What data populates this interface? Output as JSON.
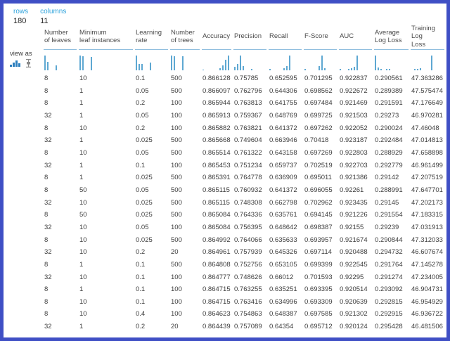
{
  "meta": {
    "rows_label": "rows",
    "rows_value": "180",
    "columns_label": "columns",
    "columns_value": "11",
    "view_as_label": "view as"
  },
  "view_icons": [
    {
      "name": "histogram-view-icon",
      "selected": true
    },
    {
      "name": "boxplot-view-icon",
      "selected": false
    }
  ],
  "colors": {
    "frame": "#3F4FC5",
    "meta_label_blue": "#2FA3DC",
    "histogram_bar_blue": "#5EA8D2",
    "header_underline_blue": "#8FBEDE",
    "selected_icon_blue": "#2C7FBE",
    "text_dark": "#3C3C3C"
  },
  "chart_data": {
    "type": "table",
    "columns": [
      {
        "label": "Number\nof leaves",
        "hist": [
          1,
          0.55,
          0,
          0,
          0.35,
          0,
          0,
          0,
          0,
          0
        ]
      },
      {
        "label": "Minimum\nleaf instances",
        "hist": [
          1,
          0.95,
          0,
          0,
          0.9,
          0,
          0,
          0,
          0,
          0
        ]
      },
      {
        "label": "Learning\nrate",
        "hist": [
          1,
          0.45,
          0.45,
          0,
          0,
          0.5,
          0,
          0,
          0,
          0
        ]
      },
      {
        "label": "Number\nof trees",
        "hist": [
          1,
          0.95,
          0,
          0,
          0.95,
          0,
          0,
          0,
          0,
          0
        ]
      },
      {
        "label": "Accuracy",
        "hist": [
          0.06,
          0,
          0,
          0,
          0,
          0,
          0.15,
          0.35,
          0.7,
          1
        ]
      },
      {
        "label": "Precision",
        "hist": [
          0.25,
          0.45,
          1,
          0.3,
          0,
          0,
          0.08,
          0,
          0,
          0
        ]
      },
      {
        "label": "Recall",
        "hist": [
          0.08,
          0,
          0,
          0,
          0,
          0.15,
          0.3,
          1,
          0,
          0
        ]
      },
      {
        "label": "F-Score",
        "hist": [
          0.08,
          0,
          0,
          0,
          0,
          0.3,
          1,
          0.12,
          0,
          0
        ]
      },
      {
        "label": "AUC",
        "hist": [
          0.08,
          0,
          0,
          0.1,
          0.15,
          0.25,
          1,
          0,
          0,
          0
        ]
      },
      {
        "label": "Average\nLog Loss",
        "hist": [
          1,
          0.2,
          0.1,
          0,
          0.1,
          0.08,
          0,
          0,
          0,
          0
        ]
      },
      {
        "label": "Training Log\nLoss",
        "hist": [
          0,
          0.08,
          0.1,
          0.12,
          0,
          0,
          0,
          1,
          0,
          0
        ]
      }
    ],
    "rows": [
      [
        "8",
        "10",
        "0.1",
        "500",
        "0.866128",
        "0.75785",
        "0.652595",
        "0.701295",
        "0.922837",
        "0.290561",
        "47.363286"
      ],
      [
        "8",
        "1",
        "0.05",
        "500",
        "0.866097",
        "0.762796",
        "0.644306",
        "0.698562",
        "0.922672",
        "0.289389",
        "47.575474"
      ],
      [
        "8",
        "1",
        "0.2",
        "100",
        "0.865944",
        "0.763813",
        "0.641755",
        "0.697484",
        "0.921469",
        "0.291591",
        "47.176649"
      ],
      [
        "32",
        "1",
        "0.05",
        "100",
        "0.865913",
        "0.759367",
        "0.648769",
        "0.699725",
        "0.921503",
        "0.29273",
        "46.970281"
      ],
      [
        "8",
        "10",
        "0.2",
        "100",
        "0.865882",
        "0.763821",
        "0.641372",
        "0.697262",
        "0.922052",
        "0.290024",
        "47.46048"
      ],
      [
        "32",
        "1",
        "0.025",
        "500",
        "0.865668",
        "0.749604",
        "0.663946",
        "0.70418",
        "0.923187",
        "0.292484",
        "47.014813"
      ],
      [
        "8",
        "10",
        "0.05",
        "500",
        "0.865514",
        "0.761322",
        "0.643158",
        "0.697269",
        "0.922803",
        "0.288929",
        "47.658898"
      ],
      [
        "32",
        "1",
        "0.1",
        "100",
        "0.865453",
        "0.751234",
        "0.659737",
        "0.702519",
        "0.922703",
        "0.292779",
        "46.961499"
      ],
      [
        "8",
        "1",
        "0.025",
        "500",
        "0.865391",
        "0.764778",
        "0.636909",
        "0.695011",
        "0.921386",
        "0.29142",
        "47.207519"
      ],
      [
        "8",
        "50",
        "0.05",
        "500",
        "0.865115",
        "0.760932",
        "0.641372",
        "0.696055",
        "0.92261",
        "0.288991",
        "47.647701"
      ],
      [
        "32",
        "10",
        "0.025",
        "500",
        "0.865115",
        "0.748308",
        "0.662798",
        "0.702962",
        "0.923435",
        "0.29145",
        "47.202173"
      ],
      [
        "8",
        "50",
        "0.025",
        "500",
        "0.865084",
        "0.764336",
        "0.635761",
        "0.694145",
        "0.921226",
        "0.291554",
        "47.183315"
      ],
      [
        "32",
        "10",
        "0.05",
        "100",
        "0.865084",
        "0.756395",
        "0.648642",
        "0.698387",
        "0.92155",
        "0.29239",
        "47.031913"
      ],
      [
        "8",
        "10",
        "0.025",
        "500",
        "0.864992",
        "0.764066",
        "0.635633",
        "0.693957",
        "0.921674",
        "0.290844",
        "47.312033"
      ],
      [
        "32",
        "10",
        "0.2",
        "20",
        "0.864961",
        "0.757939",
        "0.645326",
        "0.697114",
        "0.920488",
        "0.294732",
        "46.607674"
      ],
      [
        "8",
        "1",
        "0.1",
        "500",
        "0.864808",
        "0.752756",
        "0.653105",
        "0.699399",
        "0.922545",
        "0.291764",
        "47.145278"
      ],
      [
        "32",
        "10",
        "0.1",
        "100",
        "0.864777",
        "0.748626",
        "0.66012",
        "0.701593",
        "0.92295",
        "0.291274",
        "47.234005"
      ],
      [
        "8",
        "1",
        "0.1",
        "100",
        "0.864715",
        "0.763255",
        "0.635251",
        "0.693395",
        "0.920514",
        "0.293092",
        "46.904731"
      ],
      [
        "8",
        "10",
        "0.1",
        "100",
        "0.864715",
        "0.763416",
        "0.634996",
        "0.693309",
        "0.920639",
        "0.292815",
        "46.954929"
      ],
      [
        "8",
        "10",
        "0.4",
        "100",
        "0.864623",
        "0.754863",
        "0.648387",
        "0.697585",
        "0.921302",
        "0.292915",
        "46.936722"
      ],
      [
        "32",
        "1",
        "0.2",
        "20",
        "0.864439",
        "0.757089",
        "0.64354",
        "0.695712",
        "0.920124",
        "0.295428",
        "46.481506"
      ]
    ]
  }
}
